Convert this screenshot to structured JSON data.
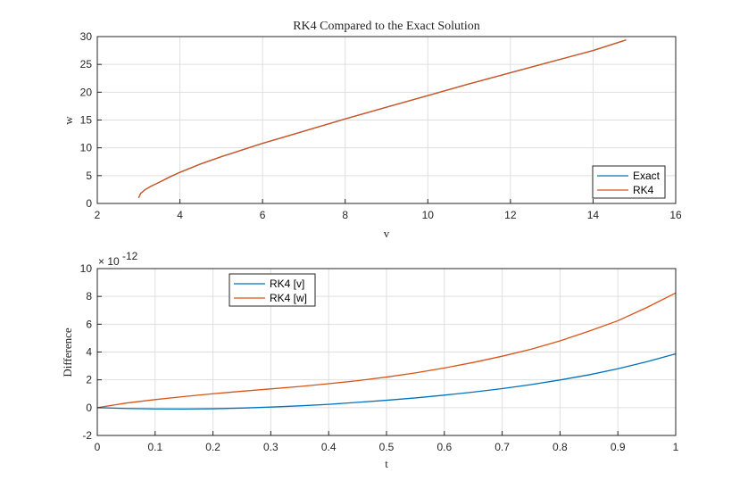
{
  "chart_data": [
    {
      "type": "line",
      "title": "RK4 Compared to the Exact Solution",
      "xlabel": "v",
      "ylabel": "w",
      "xlim": [
        2,
        16
      ],
      "ylim": [
        0,
        30
      ],
      "xticks": [
        2,
        4,
        6,
        8,
        10,
        12,
        14,
        16
      ],
      "yticks": [
        0,
        5,
        10,
        15,
        20,
        25,
        30
      ],
      "grid": true,
      "legend_position": "bottom-right",
      "series": [
        {
          "name": "Exact",
          "color": "#0072BD",
          "x": [
            3,
            3.05,
            3.15,
            3.3,
            3.5,
            3.75,
            4,
            4.5,
            5,
            5.5,
            6,
            6.5,
            7,
            8,
            9,
            10,
            11,
            12,
            13,
            14,
            14.8
          ],
          "y": [
            1,
            1.8,
            2.45,
            3.1,
            3.8,
            4.75,
            5.6,
            7.1,
            8.4,
            9.6,
            10.8,
            11.9,
            13.0,
            15.2,
            17.3,
            19.4,
            21.5,
            23.5,
            25.5,
            27.5,
            29.4
          ]
        },
        {
          "name": "RK4",
          "color": "#D95319",
          "x": [
            3,
            3.05,
            3.15,
            3.3,
            3.5,
            3.75,
            4,
            4.5,
            5,
            5.5,
            6,
            6.5,
            7,
            8,
            9,
            10,
            11,
            12,
            13,
            14,
            14.8
          ],
          "y": [
            1,
            1.8,
            2.45,
            3.1,
            3.8,
            4.75,
            5.6,
            7.1,
            8.4,
            9.6,
            10.8,
            11.9,
            13.0,
            15.2,
            17.3,
            19.4,
            21.5,
            23.5,
            25.5,
            27.5,
            29.4
          ]
        }
      ]
    },
    {
      "type": "line",
      "title": "",
      "xlabel": "t",
      "ylabel": "Difference",
      "exponent_label": "× 10",
      "exponent_power": "-12",
      "xlim": [
        0,
        1
      ],
      "ylim": [
        -2,
        10
      ],
      "xticks": [
        0,
        0.1,
        0.2,
        0.3,
        0.4,
        0.5,
        0.6,
        0.7,
        0.8,
        0.9,
        1
      ],
      "yticks": [
        -2,
        0,
        2,
        4,
        6,
        8,
        10
      ],
      "grid": true,
      "legend_position": "top-left",
      "series": [
        {
          "name": "RK4 [v]",
          "color": "#0072BD",
          "x": [
            0,
            0.05,
            0.1,
            0.15,
            0.2,
            0.25,
            0.3,
            0.35,
            0.4,
            0.45,
            0.5,
            0.55,
            0.6,
            0.65,
            0.7,
            0.75,
            0.8,
            0.85,
            0.9,
            0.95,
            1
          ],
          "y": [
            0,
            -0.06,
            -0.09,
            -0.1,
            -0.08,
            -0.03,
            0.04,
            0.13,
            0.24,
            0.38,
            0.53,
            0.7,
            0.9,
            1.12,
            1.37,
            1.66,
            1.99,
            2.36,
            2.8,
            3.3,
            3.87
          ]
        },
        {
          "name": "RK4 [w]",
          "color": "#D95319",
          "x": [
            0,
            0.05,
            0.1,
            0.15,
            0.2,
            0.25,
            0.3,
            0.35,
            0.4,
            0.45,
            0.5,
            0.55,
            0.6,
            0.65,
            0.7,
            0.75,
            0.8,
            0.85,
            0.9,
            0.95,
            1
          ],
          "y": [
            0,
            0.33,
            0.58,
            0.8,
            1.0,
            1.18,
            1.35,
            1.52,
            1.72,
            1.94,
            2.2,
            2.5,
            2.85,
            3.25,
            3.7,
            4.2,
            4.8,
            5.5,
            6.25,
            7.2,
            8.25
          ]
        }
      ]
    }
  ]
}
